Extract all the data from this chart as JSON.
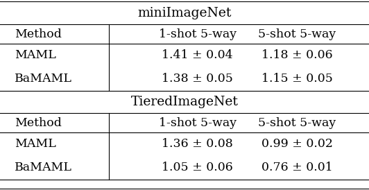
{
  "title1": "miniImageNet",
  "title2": "TieredImageNet",
  "header": [
    "Method",
    "1-shot 5-way",
    "5-shot 5-way"
  ],
  "mini_rows": [
    [
      "MAML",
      "1.41 ± 0.04",
      "1.18 ± 0.06"
    ],
    [
      "BaMAML",
      "1.38 ± 0.05",
      "1.15 ± 0.05"
    ]
  ],
  "tiered_rows": [
    [
      "MAML",
      "1.36 ± 0.08",
      "0.99 ± 0.02"
    ],
    [
      "BaMAML",
      "1.05 ± 0.06",
      "0.76 ± 0.01"
    ]
  ],
  "background_color": "#ffffff",
  "text_color": "#000000",
  "font_size": 12.5,
  "title_font_size": 13.5,
  "fig_width": 5.32,
  "fig_height": 2.74,
  "dpi": 100
}
